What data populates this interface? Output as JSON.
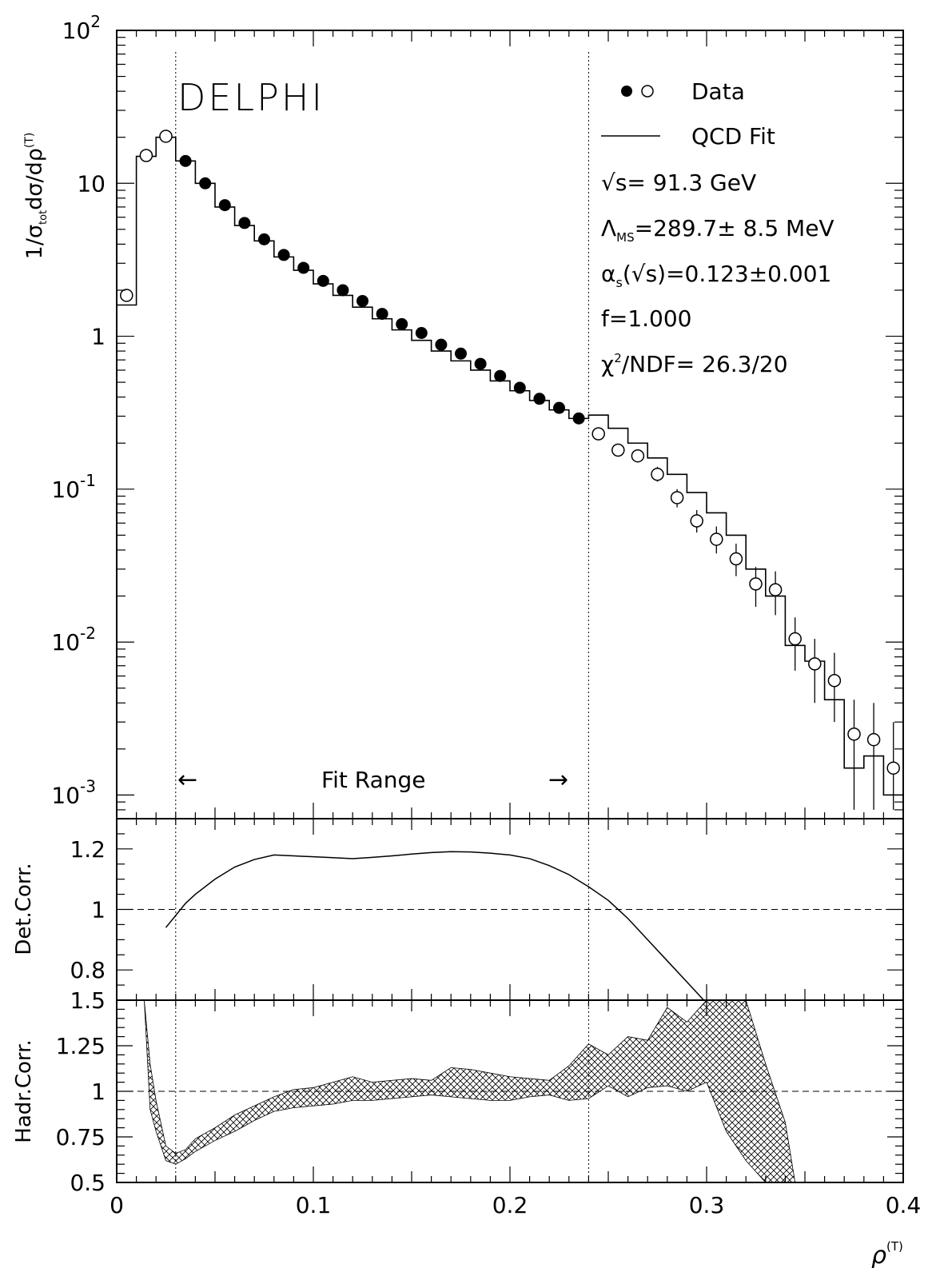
{
  "chart_data": [
    {
      "type": "scatter",
      "panel": "main",
      "title": "DELPHI",
      "ylabel": "1/σ_tot dσ/dρ^(T)",
      "yscale": "log",
      "ylim": [
        0.0007,
        100
      ],
      "xlim": [
        0,
        0.4
      ],
      "y_ticks": [
        {
          "v": 100,
          "base": "10",
          "exp": "2"
        },
        {
          "v": 10,
          "base": "10",
          "exp": ""
        },
        {
          "v": 1,
          "base": "1",
          "exp": ""
        },
        {
          "v": 0.1,
          "base": "10",
          "exp": "-1"
        },
        {
          "v": 0.01,
          "base": "10",
          "exp": "-2"
        },
        {
          "v": 0.001,
          "base": "10",
          "exp": "-3"
        }
      ],
      "legend": {
        "data_label": "Data",
        "fit_label": "QCD Fit"
      },
      "annotations": {
        "energy": "√s= 91.3 GeV",
        "lambda": "Λ",
        "lambda_sub": "MS",
        "lambda_val": "=289.7±  8.5 MeV",
        "alpha": "α",
        "alpha_sub": "s",
        "alpha_val": "(√s)=0.123±0.001",
        "f": "f=1.000",
        "chi": "χ",
        "chi_sup": "2",
        "chi_val": "/NDF= 26.3/20",
        "fit_range": "Fit Range",
        "arrow_left": "←",
        "arrow_right": "→"
      },
      "fit_range": [
        0.03,
        0.24
      ],
      "series": [
        {
          "name": "Data",
          "style": "open",
          "points": [
            {
              "x": 0.005,
              "y": 1.85
            },
            {
              "x": 0.015,
              "y": 15.2
            },
            {
              "x": 0.025,
              "y": 20.3
            }
          ]
        },
        {
          "name": "Data",
          "style": "filled",
          "points": [
            {
              "x": 0.035,
              "y": 14.0
            },
            {
              "x": 0.045,
              "y": 10.0
            },
            {
              "x": 0.055,
              "y": 7.2
            },
            {
              "x": 0.065,
              "y": 5.5
            },
            {
              "x": 0.075,
              "y": 4.3
            },
            {
              "x": 0.085,
              "y": 3.4
            },
            {
              "x": 0.095,
              "y": 2.8
            },
            {
              "x": 0.105,
              "y": 2.3
            },
            {
              "x": 0.115,
              "y": 2.0
            },
            {
              "x": 0.125,
              "y": 1.7
            },
            {
              "x": 0.135,
              "y": 1.4
            },
            {
              "x": 0.145,
              "y": 1.2
            },
            {
              "x": 0.155,
              "y": 1.05
            },
            {
              "x": 0.165,
              "y": 0.88
            },
            {
              "x": 0.175,
              "y": 0.77
            },
            {
              "x": 0.185,
              "y": 0.66
            },
            {
              "x": 0.195,
              "y": 0.55
            },
            {
              "x": 0.205,
              "y": 0.46
            },
            {
              "x": 0.215,
              "y": 0.39
            },
            {
              "x": 0.225,
              "y": 0.34
            },
            {
              "x": 0.235,
              "y": 0.29
            }
          ]
        },
        {
          "name": "Data",
          "style": "open",
          "points": [
            {
              "x": 0.245,
              "y": 0.23,
              "err": [
                0.21,
                0.25
              ]
            },
            {
              "x": 0.255,
              "y": 0.18,
              "err": [
                0.165,
                0.195
              ]
            },
            {
              "x": 0.265,
              "y": 0.165,
              "err": [
                0.15,
                0.18
              ]
            },
            {
              "x": 0.275,
              "y": 0.125,
              "err": [
                0.112,
                0.14
              ]
            },
            {
              "x": 0.285,
              "y": 0.088,
              "err": [
                0.076,
                0.1
              ]
            },
            {
              "x": 0.295,
              "y": 0.062,
              "err": [
                0.052,
                0.073
              ]
            },
            {
              "x": 0.305,
              "y": 0.047,
              "err": [
                0.038,
                0.057
              ]
            },
            {
              "x": 0.315,
              "y": 0.035,
              "err": [
                0.027,
                0.044
              ]
            },
            {
              "x": 0.325,
              "y": 0.024,
              "err": [
                0.017,
                0.031
              ]
            },
            {
              "x": 0.335,
              "y": 0.022,
              "err": [
                0.015,
                0.029
              ]
            },
            {
              "x": 0.345,
              "y": 0.0105,
              "err": [
                0.0065,
                0.0145
              ]
            },
            {
              "x": 0.355,
              "y": 0.0072,
              "err": [
                0.004,
                0.0105
              ]
            },
            {
              "x": 0.365,
              "y": 0.0056,
              "err": [
                0.003,
                0.0085
              ]
            },
            {
              "x": 0.375,
              "y": 0.0025,
              "err": [
                0.0008,
                0.0042
              ]
            },
            {
              "x": 0.385,
              "y": 0.0023,
              "err": [
                0.0008,
                0.004
              ]
            },
            {
              "x": 0.395,
              "y": 0.0015,
              "err": [
                0.0008,
                0.003
              ]
            }
          ]
        },
        {
          "name": "QCD Fit",
          "style": "step",
          "edges": [
            0,
            0.01,
            0.02,
            0.03,
            0.04,
            0.05,
            0.06,
            0.07,
            0.08,
            0.09,
            0.1,
            0.11,
            0.12,
            0.13,
            0.14,
            0.15,
            0.16,
            0.17,
            0.18,
            0.19,
            0.2,
            0.21,
            0.22,
            0.23,
            0.24,
            0.25,
            0.26,
            0.27,
            0.28,
            0.29,
            0.3,
            0.31,
            0.32,
            0.33,
            0.34,
            0.35,
            0.36,
            0.37,
            0.38,
            0.39,
            0.4
          ],
          "values": [
            1.6,
            15.0,
            20.0,
            14.0,
            10.0,
            7.0,
            5.3,
            4.2,
            3.3,
            2.7,
            2.2,
            1.85,
            1.55,
            1.3,
            1.1,
            0.94,
            0.8,
            0.69,
            0.6,
            0.51,
            0.44,
            0.38,
            0.33,
            0.29,
            0.305,
            0.25,
            0.2,
            0.16,
            0.125,
            0.095,
            0.07,
            0.05,
            0.03,
            0.02,
            0.0095,
            0.0075,
            0.0042,
            0.0015,
            0.0018,
            0.001
          ]
        }
      ]
    },
    {
      "type": "line",
      "panel": "detector",
      "ylabel": "Det.Corr.",
      "ylim": [
        0.7,
        1.3
      ],
      "xlim": [
        0,
        0.4
      ],
      "y_ticks": [
        "1.2",
        "1",
        "0.8"
      ],
      "reference_line": 1,
      "series": [
        {
          "x": [
            0.025,
            0.03,
            0.035,
            0.04,
            0.05,
            0.06,
            0.07,
            0.08,
            0.09,
            0.1,
            0.11,
            0.12,
            0.13,
            0.14,
            0.15,
            0.16,
            0.17,
            0.18,
            0.19,
            0.2,
            0.21,
            0.22,
            0.23,
            0.24,
            0.25,
            0.26,
            0.27,
            0.28,
            0.29,
            0.3
          ],
          "y": [
            0.94,
            0.98,
            1.02,
            1.05,
            1.1,
            1.14,
            1.165,
            1.18,
            1.177,
            1.174,
            1.171,
            1.168,
            1.172,
            1.177,
            1.183,
            1.188,
            1.191,
            1.19,
            1.186,
            1.18,
            1.168,
            1.145,
            1.115,
            1.075,
            1.03,
            0.97,
            0.9,
            0.83,
            0.76,
            0.69
          ]
        }
      ]
    },
    {
      "type": "area",
      "panel": "hadronization",
      "ylabel": "Hadr.Corr.",
      "ylim": [
        0.5,
        1.5
      ],
      "xlim": [
        0,
        0.4
      ],
      "xlabel": "ρ",
      "xlabel_sup": "(T)",
      "y_ticks": [
        "1.5",
        "1.25",
        "1",
        "0.75",
        "0.5"
      ],
      "x_ticks": [
        "0",
        "0.1",
        "0.2",
        "0.3",
        "0.4"
      ],
      "reference_line": 1,
      "band": {
        "x": [
          0.014,
          0.017,
          0.02,
          0.025,
          0.03,
          0.035,
          0.04,
          0.05,
          0.06,
          0.07,
          0.08,
          0.09,
          0.1,
          0.11,
          0.12,
          0.13,
          0.14,
          0.15,
          0.16,
          0.17,
          0.18,
          0.19,
          0.2,
          0.21,
          0.22,
          0.23,
          0.24,
          0.25,
          0.26,
          0.27,
          0.28,
          0.29,
          0.3,
          0.31,
          0.32,
          0.33,
          0.34,
          0.345
        ],
        "upper": [
          1.5,
          1.15,
          0.95,
          0.7,
          0.66,
          0.68,
          0.74,
          0.8,
          0.87,
          0.92,
          0.97,
          1.01,
          1.02,
          1.05,
          1.08,
          1.05,
          1.06,
          1.07,
          1.06,
          1.13,
          1.12,
          1.1,
          1.08,
          1.07,
          1.06,
          1.14,
          1.26,
          1.2,
          1.3,
          1.28,
          1.46,
          1.38,
          1.5,
          1.5,
          1.5,
          1.15,
          0.83,
          0.5
        ],
        "lower": [
          1.5,
          0.9,
          0.78,
          0.62,
          0.6,
          0.63,
          0.67,
          0.73,
          0.78,
          0.84,
          0.89,
          0.91,
          0.92,
          0.93,
          0.95,
          0.95,
          0.96,
          0.97,
          0.98,
          0.97,
          0.96,
          0.95,
          0.95,
          0.97,
          0.98,
          0.95,
          0.96,
          1.03,
          0.97,
          1.02,
          1.03,
          1.0,
          1.05,
          0.78,
          0.62,
          0.5,
          0.5,
          0.5
        ]
      }
    }
  ]
}
